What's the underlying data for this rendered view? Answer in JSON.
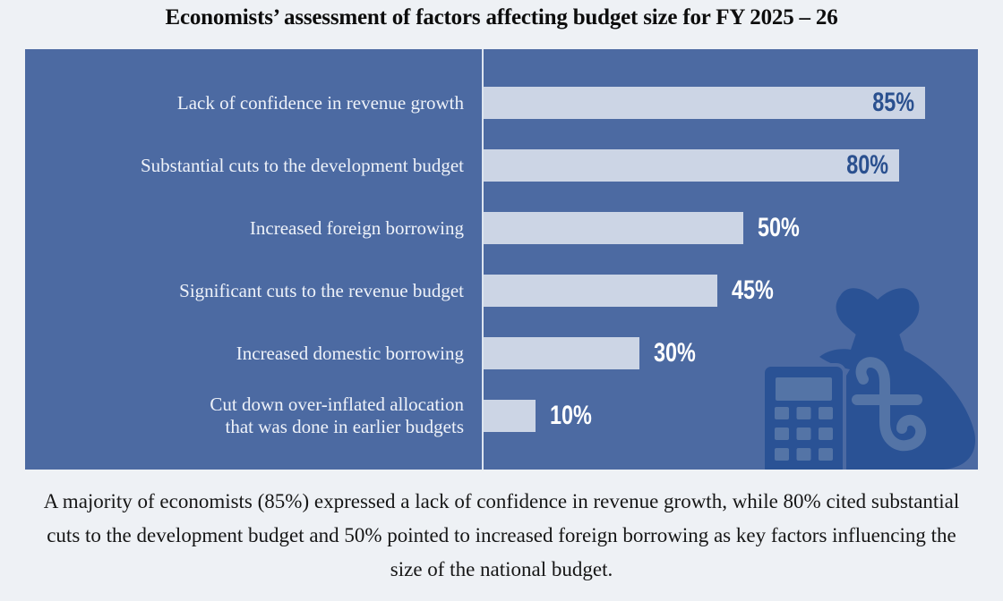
{
  "title": "Economists’ assessment of factors affecting budget size for FY 2025 – 26",
  "chart_data": {
    "type": "bar",
    "orientation": "horizontal",
    "title": "Economists’ assessment of factors affecting budget size for FY 2025 – 26",
    "categories": [
      "Lack of confidence in revenue growth",
      "Substantial cuts to the development budget",
      "Increased foreign borrowing",
      "Significant cuts to the revenue budget",
      "Increased domestic borrowing",
      "Cut down over-inflated allocation\nthat was done in earlier budgets"
    ],
    "values": [
      85,
      80,
      50,
      45,
      30,
      10
    ],
    "value_labels": [
      "85%",
      "80%",
      "50%",
      "45%",
      "30%",
      "10%"
    ],
    "xlim": [
      0,
      100
    ],
    "grid": false,
    "legend": false,
    "colors": {
      "page_bg": "#eef1f5",
      "panel_bg": "#4c6aa2",
      "bar_fill": "#ccd5e5",
      "category_text": "#eef2f9",
      "value_inside": "#2a508f",
      "value_outside": "#ffffff",
      "divider": "#dde5f0",
      "icon_fill": "#2a5295",
      "icon_detail": "#5474a6",
      "heading_text": "#0d0d0d",
      "caption_text": "#161616"
    }
  },
  "icons": {
    "money_bag": "money bag with taka symbol",
    "calculator": "calculator"
  },
  "caption": "A majority of economists (85%) expressed a lack of confidence in revenue growth, while 80% cited substantial cuts to the development budget and 50% pointed to increased foreign borrowing as key factors influencing the size of the national budget."
}
